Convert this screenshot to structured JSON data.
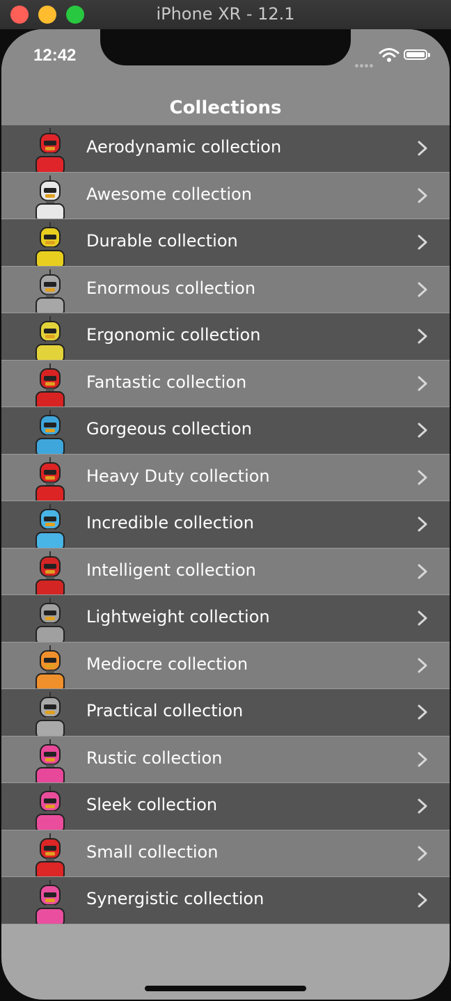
{
  "window": {
    "title": "iPhone XR - 12.1"
  },
  "status_bar": {
    "time": "12:42"
  },
  "navbar": {
    "title": "Collections"
  },
  "rows": [
    {
      "label": "Aerodynamic collection",
      "robot_color": "#e0252a",
      "shade": "dark"
    },
    {
      "label": "Awesome collection",
      "robot_color": "#e8e8e8",
      "shade": "light"
    },
    {
      "label": "Durable collection",
      "robot_color": "#e8cf1f",
      "shade": "dark"
    },
    {
      "label": "Enormous collection",
      "robot_color": "#a7a7a7",
      "shade": "light"
    },
    {
      "label": "Ergonomic collection",
      "robot_color": "#e3d33a",
      "shade": "dark"
    },
    {
      "label": "Fantastic collection",
      "robot_color": "#d82323",
      "shade": "light"
    },
    {
      "label": "Gorgeous collection",
      "robot_color": "#3fa6dc",
      "shade": "dark"
    },
    {
      "label": "Heavy Duty collection",
      "robot_color": "#dc2424",
      "shade": "light"
    },
    {
      "label": "Incredible collection",
      "robot_color": "#49b4e6",
      "shade": "dark"
    },
    {
      "label": "Intelligent collection",
      "robot_color": "#d42525",
      "shade": "light"
    },
    {
      "label": "Lightweight collection",
      "robot_color": "#a0a0a0",
      "shade": "dark"
    },
    {
      "label": "Mediocre collection",
      "robot_color": "#f0902c",
      "shade": "light"
    },
    {
      "label": "Practical collection",
      "robot_color": "#a9a9a9",
      "shade": "dark"
    },
    {
      "label": "Rustic collection",
      "robot_color": "#e8489a",
      "shade": "light"
    },
    {
      "label": "Sleek collection",
      "robot_color": "#ea4d9c",
      "shade": "dark"
    },
    {
      "label": "Small collection",
      "robot_color": "#dd2626",
      "shade": "light"
    },
    {
      "label": "Synergistic collection",
      "robot_color": "#ea4f9f",
      "shade": "dark"
    }
  ]
}
